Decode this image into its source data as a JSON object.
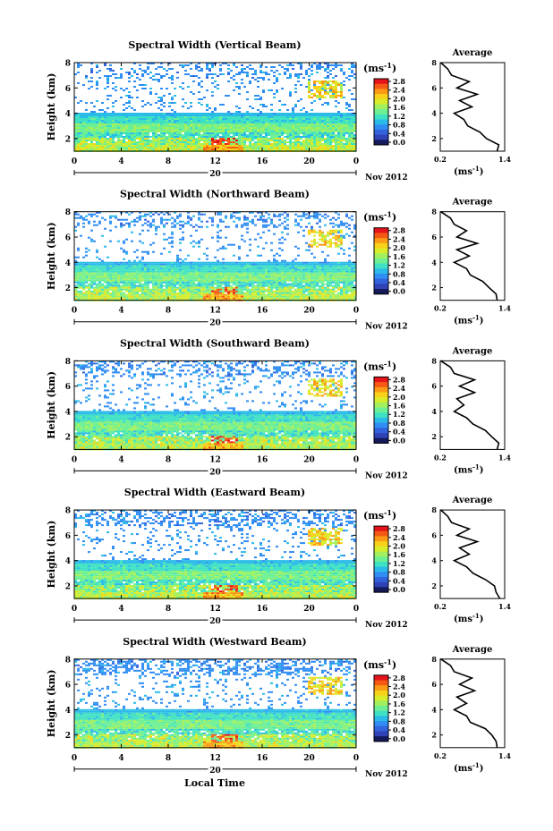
{
  "figure": {
    "xlabel": "Local Time",
    "date_label": "Nov 2012",
    "day_label": "20",
    "unit_label": "(ms",
    "unit_exp": "-1",
    "unit_close": ")",
    "height_label": "Height (km)",
    "average_title": "Average",
    "colorbar_ticks": [
      "2.8",
      "2.4",
      "2.0",
      "1.6",
      "1.2",
      "0.8",
      "0.4",
      "0.0"
    ],
    "colorbar_colors": [
      "#e5131a",
      "#f45a14",
      "#fb9a14",
      "#f8d21a",
      "#d8ec2a",
      "#a3f05e",
      "#6df093",
      "#3fe1c4",
      "#2bbbe8",
      "#2f8df3",
      "#3263dd",
      "#2f43b7",
      "#141a5a"
    ]
  },
  "chart_data": [
    {
      "type": "heatmap",
      "title": "Spectral Width (Vertical Beam)",
      "xlabel": "Local Time",
      "ylabel": "Height (km)",
      "x_ticks": [
        "0",
        "4",
        "8",
        "12",
        "16",
        "20",
        "0"
      ],
      "y_ticks": [
        "2",
        "4",
        "6",
        "8"
      ],
      "xlim": [
        0,
        24
      ],
      "ylim": [
        1,
        8
      ],
      "colorbar": {
        "label": "(ms-1)",
        "ticks": [
          2.8,
          2.4,
          2.0,
          1.6,
          1.2,
          0.8,
          0.4,
          0.0
        ]
      },
      "average_profile": {
        "title": "Average",
        "xlabel": "(ms-1)",
        "xlim": [
          0.2,
          1.4
        ],
        "x_ticks": [
          "0.2",
          "1.4"
        ],
        "ylim": [
          1,
          8
        ],
        "y_ticks": [
          "2",
          "4",
          "6",
          "8"
        ],
        "height_km": [
          1.0,
          1.5,
          2.0,
          2.5,
          3.0,
          3.5,
          4.0,
          4.5,
          5.0,
          5.5,
          6.0,
          6.5,
          7.0,
          7.5,
          8.0
        ],
        "value": [
          1.3,
          1.25,
          1.1,
          0.9,
          0.75,
          0.6,
          0.5,
          0.75,
          0.6,
          0.85,
          0.55,
          0.7,
          0.45,
          0.3,
          0.25
        ]
      }
    },
    {
      "type": "heatmap",
      "title": "Spectral Width (Northward Beam)",
      "xlabel": "Local Time",
      "ylabel": "Height (km)",
      "x_ticks": [
        "0",
        "4",
        "8",
        "12",
        "16",
        "20",
        "0"
      ],
      "y_ticks": [
        "2",
        "4",
        "6",
        "8"
      ],
      "xlim": [
        0,
        24
      ],
      "ylim": [
        1,
        8
      ],
      "colorbar": {
        "label": "(ms-1)",
        "ticks": [
          2.8,
          2.4,
          2.0,
          1.6,
          1.2,
          0.8,
          0.4,
          0.0
        ]
      },
      "average_profile": {
        "title": "Average",
        "xlabel": "(ms-1)",
        "xlim": [
          0.2,
          1.4
        ],
        "x_ticks": [
          "0.2",
          "1.4"
        ],
        "ylim": [
          1,
          8
        ],
        "y_ticks": [
          "2",
          "4",
          "6",
          "8"
        ],
        "height_km": [
          1.0,
          1.5,
          2.0,
          2.5,
          3.0,
          3.5,
          4.0,
          4.5,
          5.0,
          5.5,
          6.0,
          6.5,
          7.0,
          7.5,
          8.0
        ],
        "value": [
          1.3,
          1.2,
          1.15,
          0.95,
          0.8,
          0.65,
          0.5,
          0.7,
          0.55,
          0.85,
          0.55,
          0.65,
          0.5,
          0.35,
          0.25
        ]
      }
    },
    {
      "type": "heatmap",
      "title": "Spectral Width (Southward Beam)",
      "xlabel": "Local Time",
      "ylabel": "Height (km)",
      "x_ticks": [
        "0",
        "4",
        "8",
        "12",
        "16",
        "20",
        "0"
      ],
      "y_ticks": [
        "2",
        "4",
        "6",
        "8"
      ],
      "xlim": [
        0,
        24
      ],
      "ylim": [
        1,
        8
      ],
      "colorbar": {
        "label": "(ms-1)",
        "ticks": [
          2.8,
          2.4,
          2.0,
          1.6,
          1.2,
          0.8,
          0.4,
          0.0
        ]
      },
      "average_profile": {
        "title": "Average",
        "xlabel": "(ms-1)",
        "xlim": [
          0.2,
          1.4
        ],
        "x_ticks": [
          "0.2",
          "1.4"
        ],
        "ylim": [
          1,
          8
        ],
        "y_ticks": [
          "2",
          "4",
          "6",
          "8"
        ],
        "height_km": [
          1.0,
          1.5,
          2.0,
          2.5,
          3.0,
          3.5,
          4.0,
          4.5,
          5.0,
          5.5,
          6.0,
          6.5,
          7.0,
          7.5,
          8.0
        ],
        "value": [
          1.3,
          1.25,
          1.2,
          1.0,
          0.85,
          0.65,
          0.5,
          0.6,
          0.55,
          0.8,
          0.6,
          0.8,
          0.5,
          0.35,
          0.25
        ]
      }
    },
    {
      "type": "heatmap",
      "title": "Spectral Width (Eastward Beam)",
      "xlabel": "Local Time",
      "ylabel": "Height (km)",
      "x_ticks": [
        "0",
        "4",
        "8",
        "12",
        "16",
        "20",
        "0"
      ],
      "y_ticks": [
        "2",
        "4",
        "6",
        "8"
      ],
      "xlim": [
        0,
        24
      ],
      "ylim": [
        1,
        8
      ],
      "colorbar": {
        "label": "(ms-1)",
        "ticks": [
          2.8,
          2.4,
          2.0,
          1.6,
          1.2,
          0.8,
          0.4,
          0.0
        ]
      },
      "average_profile": {
        "title": "Average",
        "xlabel": "(ms-1)",
        "xlim": [
          0.2,
          1.4
        ],
        "x_ticks": [
          "0.2",
          "1.4"
        ],
        "ylim": [
          1,
          8
        ],
        "y_ticks": [
          "2",
          "4",
          "6",
          "8"
        ],
        "height_km": [
          1.0,
          1.5,
          2.0,
          2.5,
          3.0,
          3.5,
          4.0,
          4.5,
          5.0,
          5.5,
          6.0,
          6.5,
          7.0,
          7.5,
          8.0
        ],
        "value": [
          1.35,
          1.2,
          1.25,
          1.0,
          0.85,
          0.65,
          0.5,
          0.7,
          0.6,
          0.85,
          0.55,
          0.7,
          0.45,
          0.3,
          0.25
        ]
      }
    },
    {
      "type": "heatmap",
      "title": "Spectral Width (Westward Beam)",
      "xlabel": "Local Time",
      "ylabel": "Height (km)",
      "x_ticks": [
        "0",
        "4",
        "8",
        "12",
        "16",
        "20",
        "0"
      ],
      "y_ticks": [
        "2",
        "4",
        "6",
        "8"
      ],
      "xlim": [
        0,
        24
      ],
      "ylim": [
        1,
        8
      ],
      "colorbar": {
        "label": "(ms-1)",
        "ticks": [
          2.8,
          2.4,
          2.0,
          1.6,
          1.2,
          0.8,
          0.4,
          0.0
        ]
      },
      "average_profile": {
        "title": "Average",
        "xlabel": "(ms-1)",
        "xlim": [
          0.2,
          1.4
        ],
        "x_ticks": [
          "0.2",
          "1.4"
        ],
        "ylim": [
          1,
          8
        ],
        "y_ticks": [
          "2",
          "4",
          "6",
          "8"
        ],
        "height_km": [
          1.0,
          1.5,
          2.0,
          2.5,
          3.0,
          3.5,
          4.0,
          4.5,
          5.0,
          5.5,
          6.0,
          6.5,
          7.0,
          7.5,
          8.0
        ],
        "value": [
          1.3,
          1.2,
          1.2,
          1.0,
          0.8,
          0.65,
          0.5,
          0.65,
          0.55,
          0.8,
          0.6,
          0.75,
          0.5,
          0.35,
          0.25
        ]
      }
    }
  ]
}
